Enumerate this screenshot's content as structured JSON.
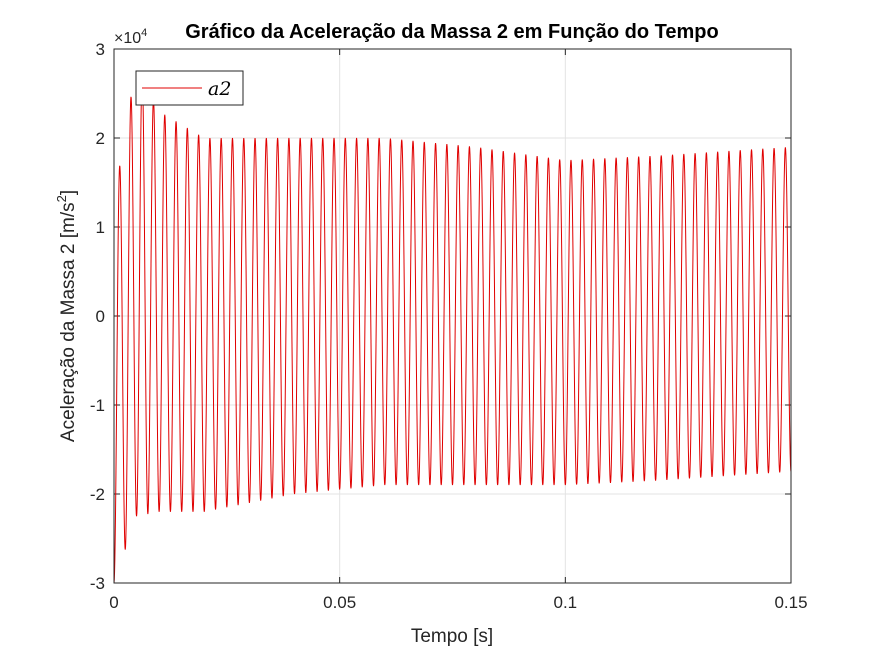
{
  "chart_data": {
    "type": "line",
    "title": "Gráfico da Aceleração da Massa 2 em Função do Tempo",
    "xlabel": "Tempo [s]",
    "ylabel_main": "Aceleração da Massa 2 [m/s",
    "ylabel_sup": "2",
    "ylabel_tail": "]",
    "exponent_base": "×10",
    "exponent_power": "4",
    "xlim": [
      0,
      0.15
    ],
    "ylim": [
      -3,
      3
    ],
    "x_ticks": [
      0,
      0.05,
      0.1,
      0.15
    ],
    "x_tick_labels": [
      "0",
      "0.05",
      "0.1",
      "0.15"
    ],
    "y_ticks": [
      -3,
      -2,
      -1,
      0,
      1,
      2,
      3
    ],
    "y_tick_labels": [
      "-3",
      "-2",
      "-1",
      "0",
      "1",
      "2",
      "3"
    ],
    "grid": true,
    "legend_position": "top-left",
    "series": [
      {
        "name": "a2",
        "color": "#e00000",
        "frequency_hz": 400,
        "envelope": {
          "time": [
            0,
            0.005,
            0.01,
            0.02,
            0.04,
            0.06,
            0.08,
            0.1,
            0.12,
            0.15
          ],
          "max": [
            1.3,
            2.85,
            2.3,
            2.0,
            2.0,
            2.0,
            1.9,
            1.75,
            1.8,
            1.9
          ],
          "min": [
            -3.0,
            -2.25,
            -2.2,
            -2.2,
            -2.0,
            -1.9,
            -1.9,
            -1.9,
            -1.85,
            -1.75
          ]
        }
      }
    ]
  }
}
